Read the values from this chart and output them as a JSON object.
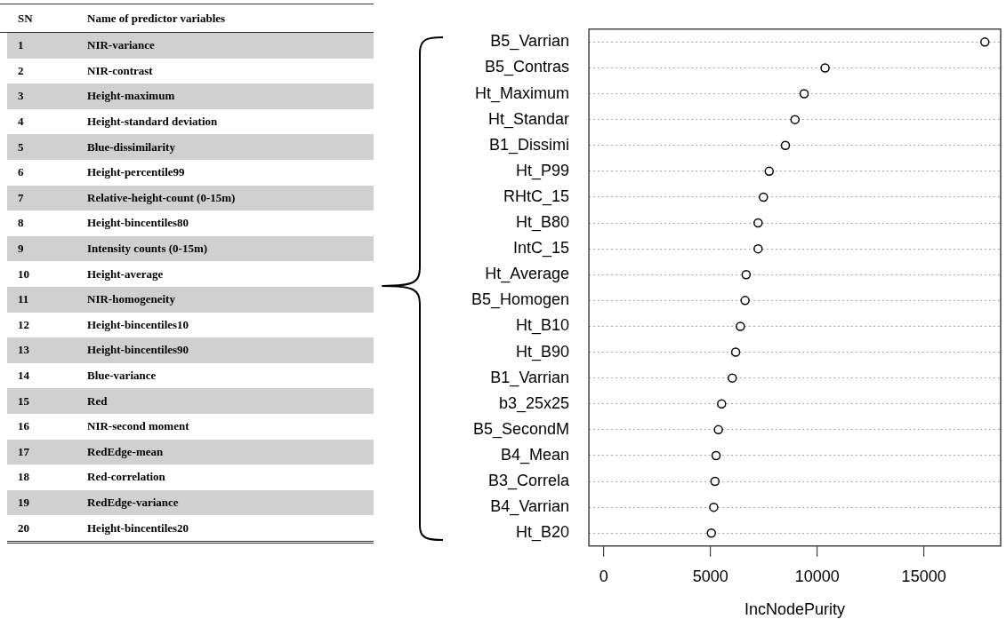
{
  "chart_data": [
    {
      "type": "other",
      "annotations": [
        "SN",
        "Name of predictor variables",
        "1",
        "NIR-variance",
        "2",
        "NIR-contrast",
        "3",
        "Height-maximum",
        "4",
        "Height-standard deviation",
        "5",
        "Blue-dissimilarity",
        "6",
        "Height-percentile99",
        "7",
        "Relative-height-count (0-15m)",
        "8",
        "Height-bincentiles80",
        "9",
        "Intensity counts (0-15m)",
        "10",
        "Height-average",
        "11",
        "NIR-homogeneity",
        "12",
        "Height-bincentiles10",
        "13",
        "Height-bincentiles90",
        "14",
        "Blue-variance",
        "15",
        "Red",
        "16",
        "NIR-second moment",
        "17",
        "RedEdge-mean",
        "18",
        "Red-correlation",
        "19",
        "RedEdge-variance",
        "20",
        "Height-bincentiles20"
      ]
    },
    {
      "type": "scatter",
      "orientation": "horizontal",
      "xlabel": "IncNodePurity",
      "categories": [
        "B5_Varrian",
        "B5_Contras",
        "Ht_Maximum",
        "Ht_Standar",
        "B1_Dissimi",
        "Ht_P99",
        "RHtC_15",
        "Ht_B80",
        "IntC_15",
        "Ht_Average",
        "B5_Homogen",
        "Ht_B10",
        "Ht_B90",
        "B1_Varrian",
        "b3_25x25",
        "B5_SecondM",
        "B4_Mean",
        "B3_Correla",
        "B4_Varrian",
        "Ht_B20"
      ],
      "values": [
        17860,
        10370,
        9390,
        8960,
        8510,
        7750,
        7480,
        7230,
        7230,
        6670,
        6620,
        6400,
        6180,
        6020,
        5520,
        5370,
        5260,
        5210,
        5150,
        5040
      ],
      "color": "#000000",
      "marker": "circle",
      "grid": "y",
      "line_style": "dotted",
      "xlim": [
        -700,
        18600
      ],
      "xticks": [
        0,
        5000,
        10000,
        15000
      ]
    }
  ]
}
